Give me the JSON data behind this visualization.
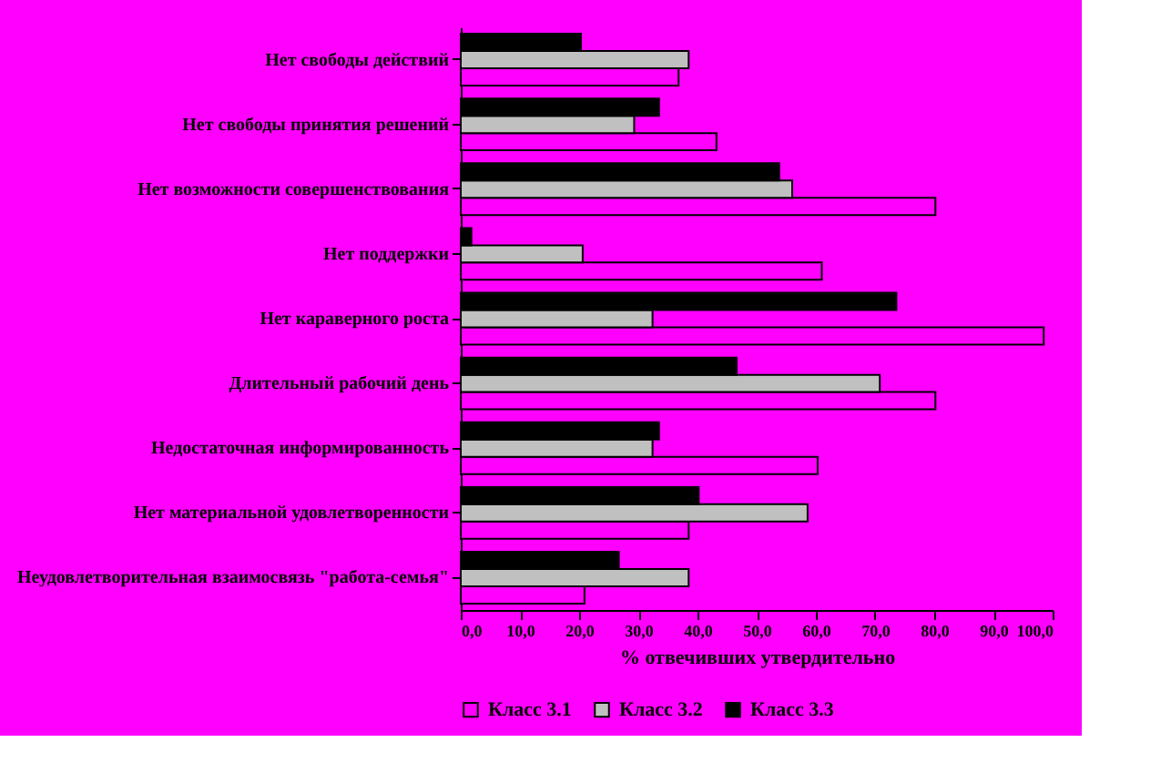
{
  "chart_data": {
    "type": "bar",
    "orientation": "horizontal",
    "categories": [
      "Нет свободы действий",
      "Нет свободы принятия решений",
      "Нет возможности совершенствования",
      "Нет поддержки",
      "Нет караверного роста",
      "Длительный рабочий день",
      "Недостаточная информированность",
      "Нет материальной удовлетворенности",
      "Неудовлетворительная взаимосвязь \"работа-семья\""
    ],
    "series": [
      {
        "name": "Класс 3.1",
        "color": "#ff00ff",
        "values": [
          36.8,
          43.2,
          80.2,
          61.0,
          98.5,
          80.2,
          60.3,
          38.5,
          20.9
        ]
      },
      {
        "name": "Класс 3.2",
        "color": "#c0c0c0",
        "values": [
          38.5,
          29.3,
          56.0,
          20.6,
          32.4,
          70.8,
          32.4,
          58.6,
          38.5
        ]
      },
      {
        "name": "Класс 3.3",
        "color": "#000000",
        "values": [
          20.3,
          33.5,
          53.8,
          1.8,
          73.6,
          46.6,
          33.5,
          40.2,
          26.7
        ]
      }
    ],
    "xlabel": "%  отвечивших утвердительно",
    "xlim": [
      0,
      100
    ],
    "xticks": [
      {
        "value": 0,
        "label": "0,0"
      },
      {
        "value": 10,
        "label": "10,0"
      },
      {
        "value": 20,
        "label": "20,0"
      },
      {
        "value": 30,
        "label": "30,0"
      },
      {
        "value": 40,
        "label": "40,0"
      },
      {
        "value": 50,
        "label": "50,0"
      },
      {
        "value": 60,
        "label": "60,0"
      },
      {
        "value": 70,
        "label": "70,0"
      },
      {
        "value": 80,
        "label": "80,0"
      },
      {
        "value": 90,
        "label": "90,0"
      },
      {
        "value": 100,
        "label": "100,0"
      }
    ],
    "grid": false,
    "legend": "bottom"
  }
}
